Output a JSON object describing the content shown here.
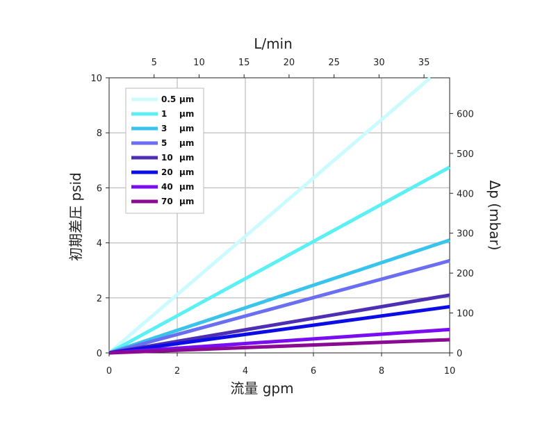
{
  "chart_data": {
    "type": "line",
    "title": "",
    "xlabel": "流量 gpm",
    "ylabel": "初期差圧 psid",
    "x2label": "L/min",
    "y2label": "Δp (mbar)",
    "xlim": [
      0,
      10
    ],
    "ylim": [
      0,
      10
    ],
    "x2lim": [
      0,
      37.85
    ],
    "y2lim": [
      0,
      689.5
    ],
    "xticks": [
      "0",
      "2",
      "4",
      "6",
      "8",
      "10"
    ],
    "yticks": [
      "0",
      "2",
      "4",
      "6",
      "8",
      "10"
    ],
    "x2ticks": [
      "5",
      "10",
      "15",
      "20",
      "25",
      "30",
      "35"
    ],
    "y2ticks": [
      "0",
      "100",
      "200",
      "300",
      "400",
      "500",
      "600"
    ],
    "grid": true,
    "legend_position": "top-left",
    "x": [
      0,
      10
    ],
    "series": [
      {
        "name": "0.5 µm",
        "color": "#ccfbff",
        "values": [
          0,
          10.6
        ]
      },
      {
        "name": "1 µm",
        "color": "#5cf0f4",
        "values": [
          0,
          6.75
        ]
      },
      {
        "name": "3 µm",
        "color": "#3ac4ec",
        "values": [
          0,
          4.1
        ]
      },
      {
        "name": "5 µm",
        "color": "#6a6ef0",
        "values": [
          0,
          3.35
        ]
      },
      {
        "name": "10 µm",
        "color": "#4e2fb4",
        "values": [
          0,
          2.1
        ]
      },
      {
        "name": "20 µm",
        "color": "#0c0de6",
        "values": [
          0,
          1.68
        ]
      },
      {
        "name": "40 µm",
        "color": "#7a0cf2",
        "values": [
          0,
          0.85
        ]
      },
      {
        "name": "70 µm",
        "color": "#8a0a94",
        "values": [
          0,
          0.48
        ]
      }
    ],
    "legend_labels": [
      {
        "num": "0.5",
        "unit": "µm"
      },
      {
        "num": "1",
        "unit": "µm"
      },
      {
        "num": "3",
        "unit": "µm"
      },
      {
        "num": "5",
        "unit": "µm"
      },
      {
        "num": "10",
        "unit": "µm"
      },
      {
        "num": "20",
        "unit": "µm"
      },
      {
        "num": "40",
        "unit": "µm"
      },
      {
        "num": "70",
        "unit": "µm"
      }
    ]
  }
}
